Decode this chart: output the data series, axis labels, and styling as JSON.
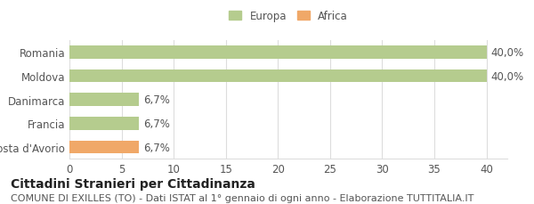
{
  "categories": [
    "Romania",
    "Moldova",
    "Danimarca",
    "Francia",
    "Costa d'Avorio"
  ],
  "values": [
    40.0,
    40.0,
    6.7,
    6.7,
    6.7
  ],
  "bar_colors": [
    "#b5cc8e",
    "#b5cc8e",
    "#b5cc8e",
    "#b5cc8e",
    "#f0a868"
  ],
  "label_texts": [
    "40,0%",
    "40,0%",
    "6,7%",
    "6,7%",
    "6,7%"
  ],
  "xlim": [
    0,
    42
  ],
  "xticks": [
    0,
    5,
    10,
    15,
    20,
    25,
    30,
    35,
    40
  ],
  "legend_entries": [
    {
      "label": "Europa",
      "color": "#b5cc8e"
    },
    {
      "label": "Africa",
      "color": "#f0a868"
    }
  ],
  "title_bold": "Cittadini Stranieri per Cittadinanza",
  "subtitle": "COMUNE DI EXILLES (TO) - Dati ISTAT al 1° gennaio di ogni anno - Elaborazione TUTTITALIA.IT",
  "background_color": "#ffffff",
  "grid_color": "#dddddd",
  "bar_height": 0.55,
  "label_fontsize": 8.5,
  "tick_fontsize": 8.5,
  "title_fontsize": 10,
  "subtitle_fontsize": 8
}
